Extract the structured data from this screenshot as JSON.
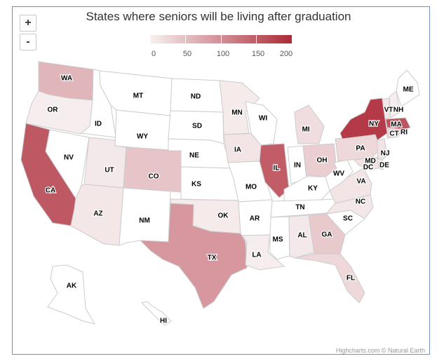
{
  "title": "States where seniors will be living after graduation",
  "zoom": {
    "in_label": "+",
    "out_label": "-"
  },
  "legend": {
    "min": 0,
    "max": 200,
    "labels": [
      "0",
      "50",
      "100",
      "150",
      "200"
    ],
    "color_min": "#f7f1f1",
    "color_max": "#ad2b38"
  },
  "credits": "Highcharts.com © Natural Earth",
  "states": [
    {
      "code": "WA",
      "value": 60
    },
    {
      "code": "OR",
      "value": 3
    },
    {
      "code": "CA",
      "value": 155
    },
    {
      "code": "ID",
      "value": 0
    },
    {
      "code": "NV",
      "value": 0
    },
    {
      "code": "MT",
      "value": 0
    },
    {
      "code": "WY",
      "value": 0
    },
    {
      "code": "UT",
      "value": 8
    },
    {
      "code": "AZ",
      "value": 10
    },
    {
      "code": "CO",
      "value": 45
    },
    {
      "code": "NM",
      "value": 0
    },
    {
      "code": "ND",
      "value": 0
    },
    {
      "code": "SD",
      "value": 0
    },
    {
      "code": "NE",
      "value": 0
    },
    {
      "code": "KS",
      "value": 0
    },
    {
      "code": "OK",
      "value": 6
    },
    {
      "code": "TX",
      "value": 90
    },
    {
      "code": "MN",
      "value": 6
    },
    {
      "code": "IA",
      "value": 12
    },
    {
      "code": "MO",
      "value": 0
    },
    {
      "code": "AR",
      "value": 0
    },
    {
      "code": "LA",
      "value": 3
    },
    {
      "code": "WI",
      "value": 0
    },
    {
      "code": "IL",
      "value": 150
    },
    {
      "code": "MI",
      "value": 20
    },
    {
      "code": "IN",
      "value": 0
    },
    {
      "code": "OH",
      "value": 35
    },
    {
      "code": "KY",
      "value": 0
    },
    {
      "code": "TN",
      "value": 0
    },
    {
      "code": "MS",
      "value": 0
    },
    {
      "code": "AL",
      "value": 8
    },
    {
      "code": "GA",
      "value": 40
    },
    {
      "code": "FL",
      "value": 25
    },
    {
      "code": "SC",
      "value": 0
    },
    {
      "code": "NC",
      "value": 10
    },
    {
      "code": "VA",
      "value": 12
    },
    {
      "code": "WV",
      "value": 0
    },
    {
      "code": "PA",
      "value": 25
    },
    {
      "code": "NY",
      "value": 185
    },
    {
      "code": "ME",
      "value": 0
    },
    {
      "code": "VT",
      "value": 10
    },
    {
      "code": "NH",
      "value": 3
    },
    {
      "code": "MA",
      "value": 160
    },
    {
      "code": "RI",
      "value": 3
    },
    {
      "code": "CT",
      "value": 30
    },
    {
      "code": "NJ",
      "value": 15
    },
    {
      "code": "DE",
      "value": 5
    },
    {
      "code": "MD",
      "value": 15
    },
    {
      "code": "DC",
      "value": 5
    },
    {
      "code": "AK",
      "value": 0
    },
    {
      "code": "HI",
      "value": 0
    }
  ]
}
